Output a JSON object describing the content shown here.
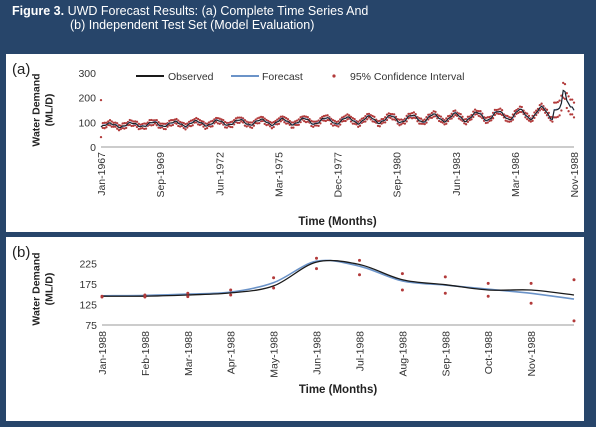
{
  "figure": {
    "label": "Figure 3.",
    "caption_line1": "UWD Forecast Results: (a) Complete Time Series And",
    "caption_line2": "(b) Independent Test Set (Model Evaluation)"
  },
  "colors": {
    "background": "#27456a",
    "observed": "#1a1a1a",
    "forecast": "#6b93c8",
    "confidence": "#b23a3a"
  },
  "chart_data": [
    {
      "panel_label": "(a)",
      "type": "line",
      "xlabel": "Time (Months)",
      "ylabel": "Water Demand\n(ML/D)",
      "yticks": [
        0,
        100,
        200,
        300
      ],
      "ylim": [
        0,
        300
      ],
      "xlim": [
        "Jan-1967",
        "Dec-1988"
      ],
      "tick_labels": [
        "Jan-1967",
        "Sep-1969",
        "Jun-1972",
        "Mar-1975",
        "Dec-1977",
        "Sep-1980",
        "Jun-1983",
        "Mar-1986",
        "Nov-1988"
      ],
      "legend": [
        "Observed",
        "Forecast",
        "95% Confidence Interval"
      ],
      "legend_position": "top",
      "grid": false,
      "series_note": "monthly demand with seasonal cycle; values estimated",
      "yearly_baseline": [
        88,
        90,
        92,
        94,
        96,
        98,
        100,
        101,
        102,
        104,
        106,
        108,
        110,
        113,
        115,
        118,
        120,
        124,
        128,
        132,
        138,
        150
      ],
      "seasonal_amplitude": [
        8,
        8,
        9,
        9,
        10,
        10,
        11,
        11,
        12,
        12,
        13,
        13,
        14,
        14,
        15,
        15,
        16,
        17,
        18,
        20,
        24,
        40
      ]
    },
    {
      "panel_label": "(b)",
      "type": "line",
      "xlabel": "Time (Months)",
      "ylabel": "Water Demand\n(ML/D)",
      "yticks": [
        75,
        125,
        175,
        225
      ],
      "ylim": [
        75,
        250
      ],
      "categories": [
        "Jan-1988",
        "Feb-1988",
        "Mar-1988",
        "Apr-1988",
        "May-1988",
        "Jun-1988",
        "Jul-1988",
        "Aug-1988",
        "Sep-1988",
        "Oct-1988",
        "Nov-1988",
        "Dec-1988"
      ],
      "tick_labels": [
        "Jan-1988",
        "Feb-1988",
        "Mar-1988",
        "Apr-1988",
        "May-1988",
        "Jun-1988",
        "Jul-1988",
        "Aug-1988",
        "Sep-1988",
        "Oct-1988",
        "Nov-1988"
      ],
      "grid": false,
      "series": [
        {
          "name": "Observed",
          "values": [
            145,
            145,
            148,
            153,
            170,
            228,
            222,
            185,
            173,
            160,
            160,
            148
          ]
        },
        {
          "name": "Forecast",
          "values": [
            146,
            147,
            150,
            155,
            178,
            230,
            218,
            182,
            172,
            162,
            152,
            138
          ]
        },
        {
          "name": "95% Confidence Interval (upper)",
          "values": [
            145,
            148,
            152,
            160,
            190,
            237,
            232,
            200,
            192,
            176,
            176,
            185
          ]
        },
        {
          "name": "95% Confidence Interval (lower)",
          "values": [
            143,
            143,
            144,
            148,
            165,
            212,
            197,
            160,
            152,
            145,
            128,
            85
          ]
        }
      ]
    }
  ]
}
